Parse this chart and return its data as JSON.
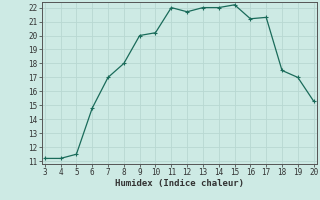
{
  "x": [
    3,
    4,
    5,
    6,
    7,
    8,
    9,
    10,
    11,
    12,
    13,
    14,
    15,
    16,
    17,
    18,
    19,
    20
  ],
  "y": [
    11.2,
    11.2,
    11.5,
    14.8,
    17.0,
    18.0,
    20.0,
    20.2,
    22.0,
    21.7,
    22.0,
    22.0,
    22.2,
    21.2,
    21.3,
    17.5,
    17.0,
    15.3
  ],
  "line_color": "#1a6b5a",
  "marker": "+",
  "marker_size": 3,
  "marker_lw": 0.8,
  "line_width": 0.9,
  "bg_color": "#cdeae4",
  "grid_color": "#b8d8d2",
  "xlabel": "Humidex (Indice chaleur)",
  "xlim_min": 3,
  "xlim_max": 20,
  "ylim_min": 11,
  "ylim_max": 22.4,
  "yticks": [
    11,
    12,
    13,
    14,
    15,
    16,
    17,
    18,
    19,
    20,
    21,
    22
  ],
  "xticks": [
    3,
    4,
    5,
    6,
    7,
    8,
    9,
    10,
    11,
    12,
    13,
    14,
    15,
    16,
    17,
    18,
    19,
    20
  ],
  "xlabel_fontsize": 6.5,
  "tick_fontsize": 5.5
}
